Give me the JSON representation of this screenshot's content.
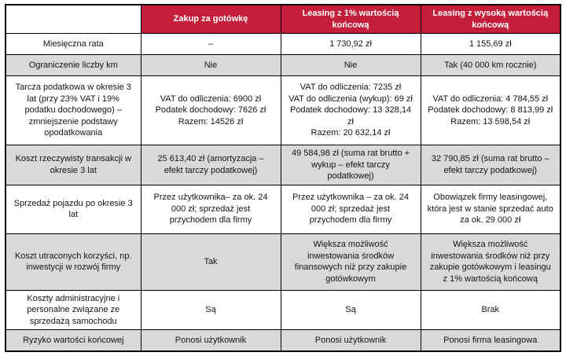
{
  "table": {
    "corner": "",
    "columns": [
      "Zakup za gotówkę",
      "Leasing z 1% wartością końcową",
      "Leasing z wysoką wartością końcową"
    ],
    "rows": [
      {
        "label": "Miesięczna rata",
        "cells": [
          "–",
          "1 730,92 zł",
          "1 155,69 zł"
        ]
      },
      {
        "label": "Ograniczenie liczby km",
        "cells": [
          "Nie",
          "Nie",
          "Tak (40 000 km rocznie)"
        ]
      },
      {
        "label": "Tarcza podatkowa w okresie 3 lat (przy 23% VAT i 19% podatku dochodowego) – zmniejszenie podstawy opodatkowania",
        "cells": [
          "VAT do odliczenia: 6900 zł\nPodatek dochodowy: 7626 zł\nRazem: 14526 zł",
          "VAT do odliczenia: 7235 zł\nVAT do odliczenia (wykup): 69 zł\nPodatek dochodowy: 13 328,14 zł\nRazem: 20 632,14 zł",
          "VAT do odliczenia: 4 784,55 zł\nPodatek dochodowy: 8 813,99 zł\nRazem: 13 598,54 zł"
        ]
      },
      {
        "label": "Koszt rzeczywisty transakcji w okresie 3 lat",
        "cells": [
          "25 613,40 zł (amortyzacja – efekt tarczy podatkowej)",
          "49 584,98 zł (suma rat brutto + wykup – efekt tarczy podatkowej)",
          "32 790,85 zł (suma rat brutto – efekt tarczy podatkowej)"
        ]
      },
      {
        "label": "Sprzedaż pojazdu po okresie 3 lat",
        "cells": [
          "Przez użytkownika– za ok. 24 000 zł; sprzedaż jest przychodem dla firmy",
          "Przez użytkownika – za ok. 24 000 zł; sprzedaż jest przychodem dla firmy",
          "Obowiązek firmy leasingowej, która jest w stanie sprzedać auto za ok. 29 000 zł"
        ]
      },
      {
        "label": "Koszt utraconych korzyści, np. inwestycji w rozwój firmy",
        "cells": [
          "Tak",
          "Większa możliwość inwestowania środków finansowych niż przy zakupie gotówkowym",
          "Większa możliwość inwestowania środków niż przy zakupie gotówkowym i leasingu z 1% wartością końcową"
        ]
      },
      {
        "label": "Koszty administracyjne i personalne związane ze sprzedażą samochodu",
        "cells": [
          "Są",
          "Są",
          "Brak"
        ]
      },
      {
        "label": "Ryzyko wartości końcowej",
        "cells": [
          "Ponosi użytkownik",
          "Ponosi użytkownik",
          "Ponosi firma leasingowa"
        ]
      }
    ]
  },
  "colors": {
    "header_bg": "#c41e3a",
    "header_text": "#ffffff",
    "alt_row_bg": "#d9d9d9",
    "border_color": "#000000"
  }
}
